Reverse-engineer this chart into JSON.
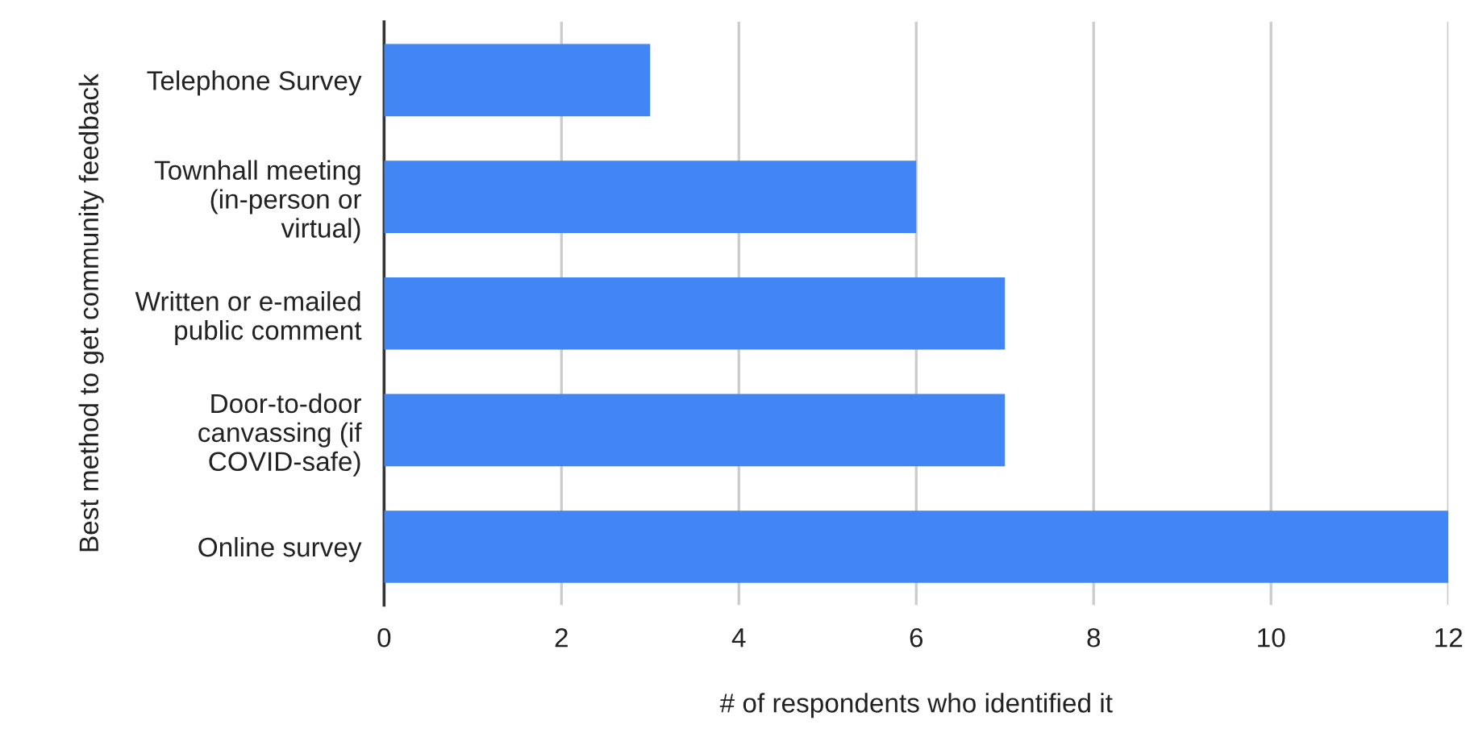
{
  "chart_data": {
    "type": "bar",
    "orientation": "horizontal",
    "categories": [
      "Telephone Survey",
      "Townhall meeting\n(in-person or\nvirtual)",
      "Written or e-mailed\npublic comment",
      "Door-to-door\ncanvassing (if\nCOVID-safe)",
      "Online survey"
    ],
    "values": [
      3,
      6,
      7,
      7,
      12
    ],
    "color": "#4285f4",
    "xlim": [
      0,
      12
    ],
    "xticks": [
      0,
      2,
      4,
      6,
      8,
      10,
      12
    ],
    "grid": "x",
    "xlabel": "# of respondents who identified it",
    "ylabel": "Best method to get community feedback"
  }
}
